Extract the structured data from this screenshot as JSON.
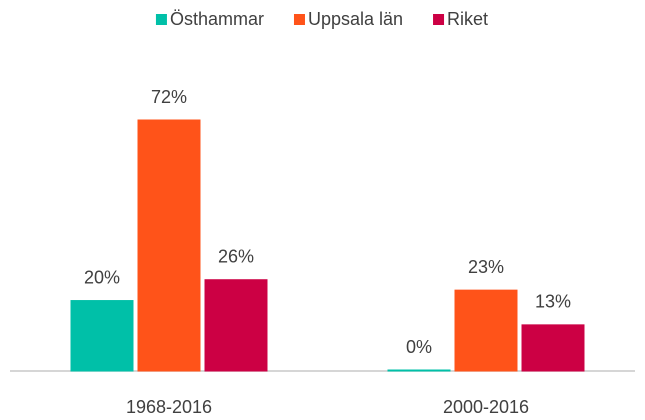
{
  "chart_data": {
    "type": "bar",
    "categories": [
      "1968-2016",
      "2000-2016"
    ],
    "series": [
      {
        "name": "Östhammar",
        "color": "#00c0a8",
        "values": [
          20,
          0
        ],
        "value_labels": [
          "20%",
          "0%"
        ]
      },
      {
        "name": "Uppsala län",
        "color": "#ff5319",
        "values": [
          72,
          23
        ],
        "value_labels": [
          "72%",
          "23%"
        ]
      },
      {
        "name": "Riket",
        "color": "#cc0044",
        "values": [
          26,
          13
        ],
        "value_labels": [
          "26%",
          "13%"
        ]
      }
    ],
    "legend": "top"
  }
}
